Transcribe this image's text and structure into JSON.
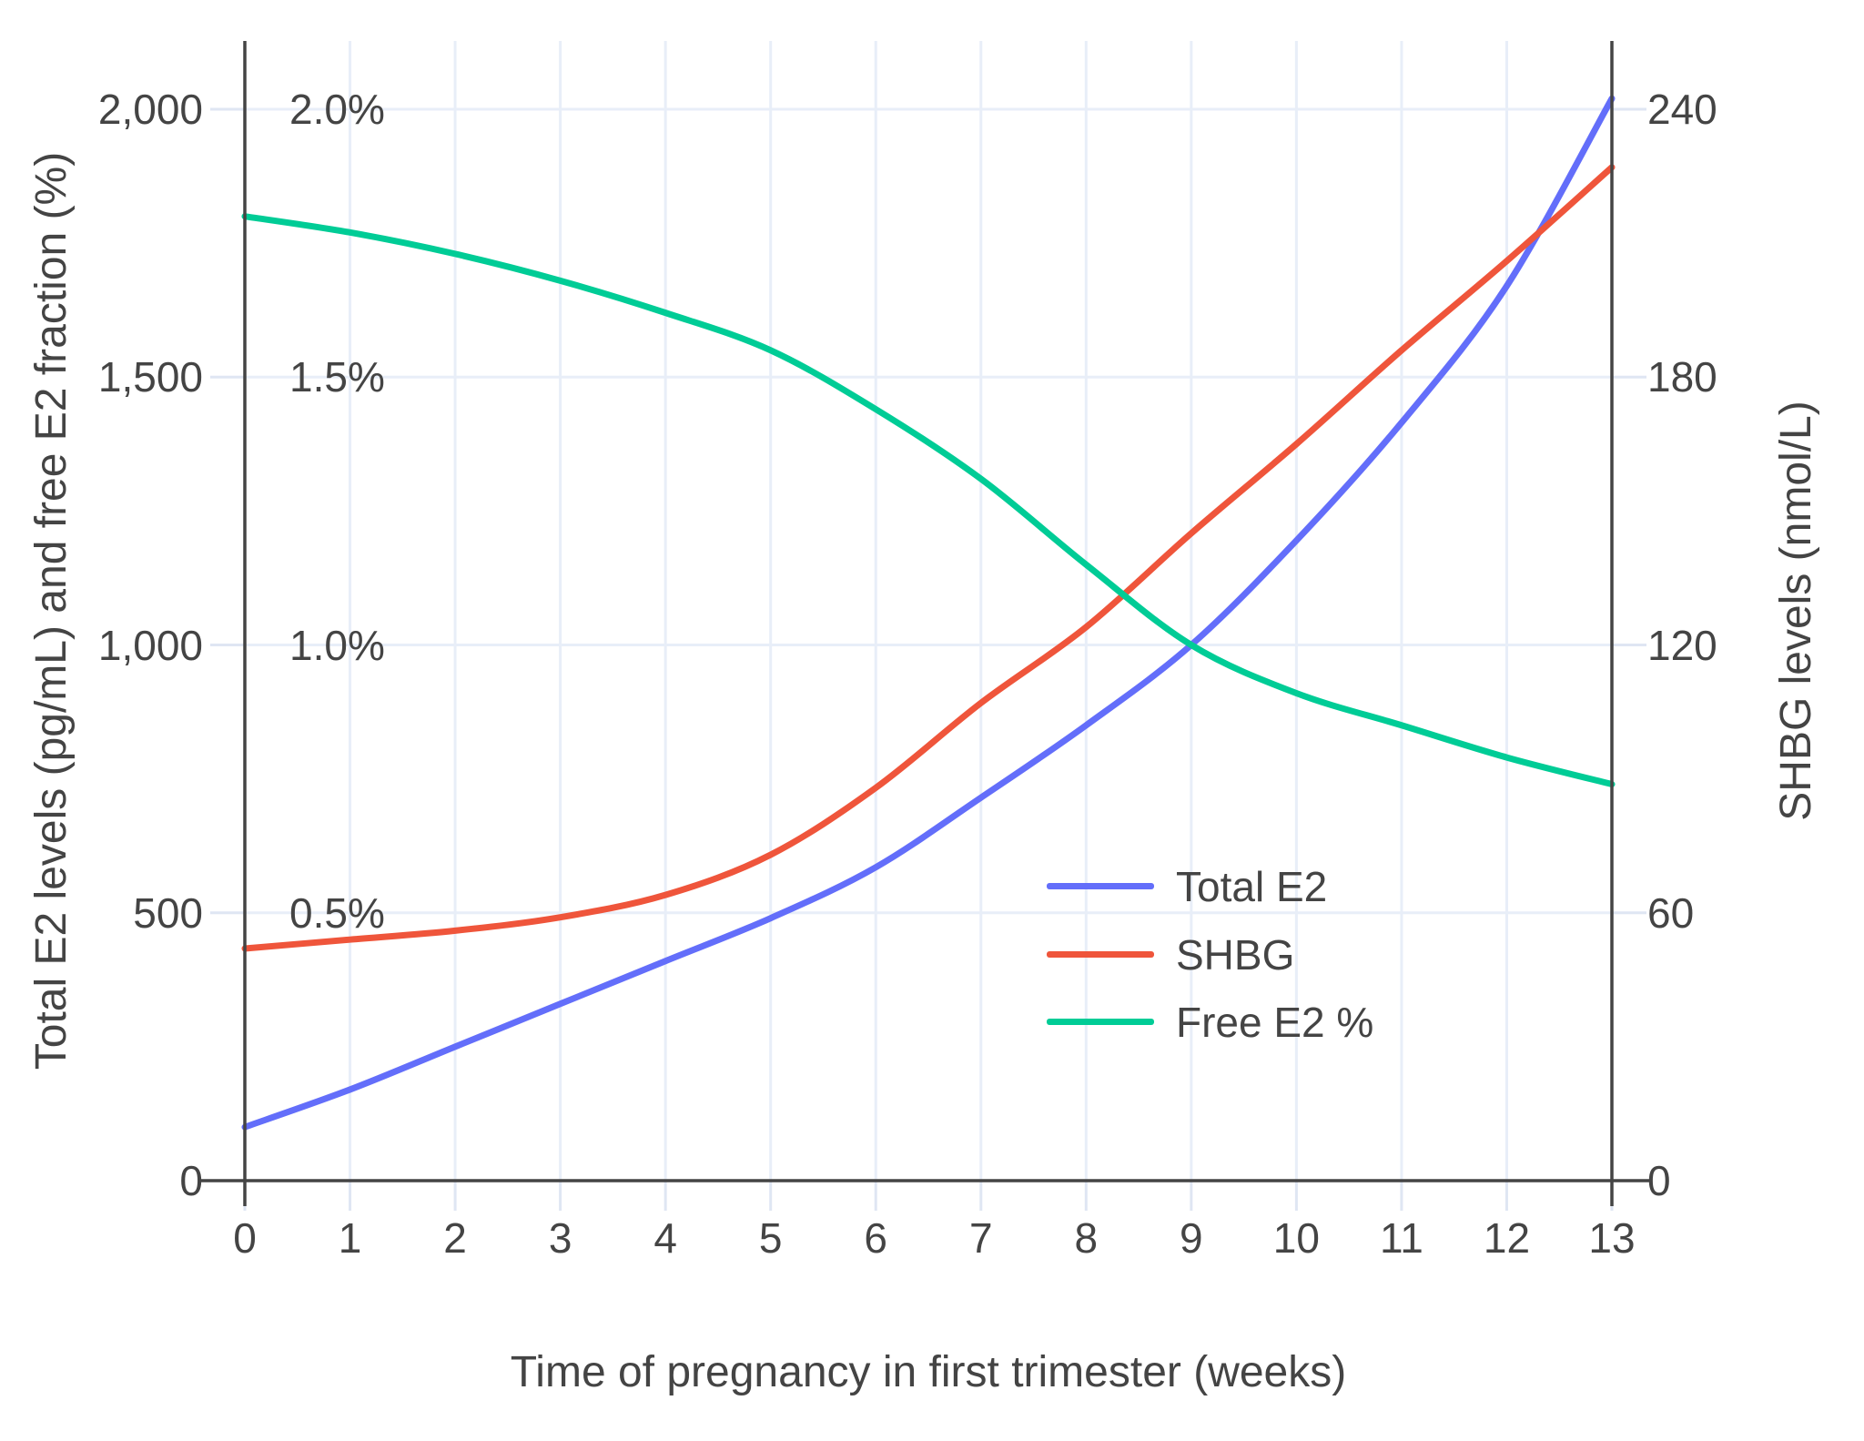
{
  "figure": {
    "x_title": "Time of pregnancy in first trimester (weeks)",
    "y_left_title": "Total E2 levels (pg/mL) and free E2 fraction (%)",
    "y_right_title": "SHBG levels (nmol/L)"
  },
  "axes": {
    "x_tick_labels": [
      "0",
      "1",
      "2",
      "3",
      "4",
      "5",
      "6",
      "7",
      "8",
      "9",
      "10",
      "11",
      "12",
      "13"
    ],
    "x_tick_values": [
      0,
      1,
      2,
      3,
      4,
      5,
      6,
      7,
      8,
      9,
      10,
      11,
      12,
      13
    ],
    "y_left_tick_labels": [
      "0",
      "500",
      "1,000",
      "1,500",
      "2,000"
    ],
    "y_left_tick_values": [
      0,
      500,
      1000,
      1500,
      2000
    ],
    "y_left_percent_tick_labels": [
      "0.5%",
      "1.0%",
      "1.5%",
      "2.0%"
    ],
    "y_left_percent_tick_values": [
      500,
      1000,
      1500,
      2000
    ],
    "y_right_tick_labels": [
      "0",
      "60",
      "120",
      "180",
      "240"
    ],
    "y_right_tick_values": [
      0,
      60,
      120,
      180,
      240
    ]
  },
  "legend": {
    "items": [
      {
        "label": "Total E2",
        "color": "#636EFA"
      },
      {
        "label": "SHBG",
        "color": "#EF553B"
      },
      {
        "label": "Free E2 %",
        "color": "#00CC96"
      }
    ]
  },
  "colors": {
    "background": "#FFFFFF",
    "grid": "#E8EEF8",
    "tick": "#DFE6F3",
    "axis_line": "#444444",
    "text": "#444444",
    "series_blue": "#636EFA",
    "series_red": "#EF553B",
    "series_green": "#00CC96"
  },
  "chart_data": {
    "type": "line",
    "title": "",
    "xlabel": "Time of pregnancy in first trimester (weeks)",
    "ylabel_left": "Total E2 levels (pg/mL) and free E2 fraction (%)",
    "ylabel_right": "SHBG levels (nmol/L)",
    "x": [
      0,
      1,
      2,
      3,
      4,
      5,
      6,
      7,
      8,
      9,
      10,
      11,
      12,
      13
    ],
    "xlim": [
      0,
      13
    ],
    "ylim_left": [
      0,
      2124
    ],
    "ylim_right": [
      0,
      254.9
    ],
    "grid": true,
    "legend_position": "inside-right-middle",
    "series": [
      {
        "name": "Total E2",
        "axis": "left",
        "unit": "pg/mL",
        "color": "#636EFA",
        "values": [
          100,
          170,
          250,
          330,
          410,
          490,
          585,
          715,
          850,
          1000,
          1195,
          1415,
          1670,
          2020
        ]
      },
      {
        "name": "SHBG",
        "axis": "right",
        "unit": "nmol/L",
        "color": "#EF553B",
        "values": [
          52,
          54,
          56,
          59,
          64,
          73,
          88,
          107,
          124,
          145,
          165,
          186,
          206,
          227
        ]
      },
      {
        "name": "Free E2 %",
        "axis": "left_percent",
        "unit": "%",
        "color": "#00CC96",
        "values": [
          1.8,
          1.77,
          1.73,
          1.68,
          1.62,
          1.55,
          1.44,
          1.31,
          1.15,
          1.0,
          0.91,
          0.85,
          0.79,
          0.74
        ]
      }
    ],
    "notable_points": [
      {
        "desc": "Free E2 % crosses Total E2 at week 9 at 1.0% / 1000 pg/mL"
      },
      {
        "desc": "SHBG crosses Free E2 % near week 8.4"
      },
      {
        "desc": "Total E2 crosses SHBG near week 12.3"
      }
    ]
  }
}
